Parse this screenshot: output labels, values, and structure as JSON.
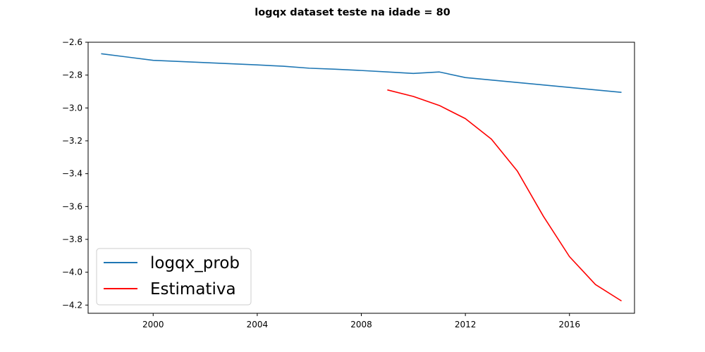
{
  "chart_data": {
    "type": "line",
    "title": "logqx dataset teste na idade = 80",
    "xlabel": "",
    "ylabel": "",
    "xlim": [
      1997.5,
      2018.5
    ],
    "ylim": [
      -4.25,
      -2.6
    ],
    "xticks": [
      2000,
      2004,
      2008,
      2012,
      2016
    ],
    "yticks": [
      -2.6,
      -2.8,
      -3.0,
      -3.2,
      -3.4,
      -3.6,
      -3.8,
      -4.0,
      -4.2
    ],
    "xtick_labels": [
      "2000",
      "2004",
      "2008",
      "2012",
      "2016"
    ],
    "ytick_labels": [
      "−2.6",
      "−2.8",
      "−3.0",
      "−3.2",
      "−3.4",
      "−3.6",
      "−3.8",
      "−4.0",
      "−4.2"
    ],
    "grid": false,
    "legend_position": "lower-left",
    "series": [
      {
        "name": "logqx_prob",
        "color": "#1f77b4",
        "x": [
          1998,
          1999,
          2000,
          2001,
          2002,
          2003,
          2004,
          2005,
          2006,
          2007,
          2008,
          2009,
          2010,
          2011,
          2012,
          2013,
          2014,
          2015,
          2016,
          2017,
          2018
        ],
        "y": [
          -2.67,
          -2.69,
          -2.71,
          -2.717,
          -2.724,
          -2.731,
          -2.738,
          -2.746,
          -2.758,
          -2.764,
          -2.772,
          -2.781,
          -2.79,
          -2.781,
          -2.815,
          -2.83,
          -2.845,
          -2.86,
          -2.875,
          -2.89,
          -2.905
        ]
      },
      {
        "name": "Estimativa",
        "color": "#ff0000",
        "x": [
          2009,
          2010,
          2011,
          2012,
          2013,
          2014,
          2015,
          2016,
          2017,
          2018
        ],
        "y": [
          -2.89,
          -2.93,
          -2.985,
          -3.065,
          -3.19,
          -3.385,
          -3.66,
          -3.905,
          -4.075,
          -4.175
        ]
      }
    ]
  }
}
